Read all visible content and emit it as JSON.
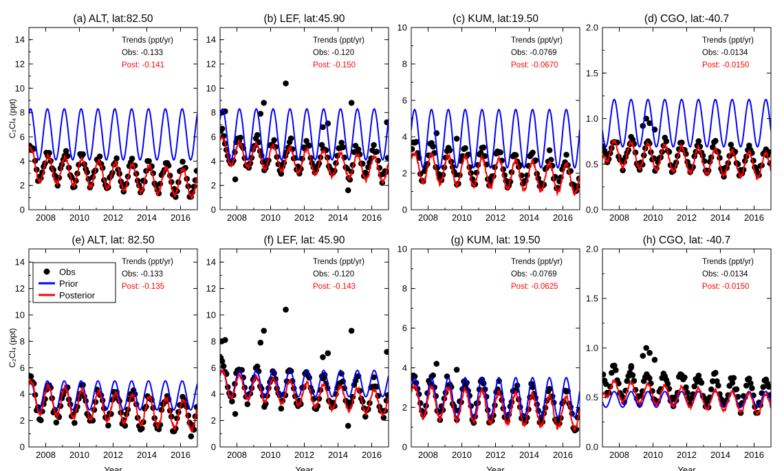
{
  "figure": {
    "y_label": "C₂Cl₄ (ppt)",
    "x_label": "Year",
    "trend_heading": "Trends (ppt/yr)",
    "obs_prefix": "Obs: ",
    "post_prefix": "Post: "
  },
  "legend": [
    {
      "name": "Obs",
      "kind": "dot",
      "color": "#000000"
    },
    {
      "name": "Prior",
      "kind": "line",
      "color": "#0000ff"
    },
    {
      "name": "Posterior",
      "kind": "line",
      "color": "#ff0000"
    }
  ],
  "chart_data": [
    {
      "type": "line",
      "title": "(a) ALT, lat:82.50",
      "xlim": [
        2007,
        2017
      ],
      "ylim": [
        0,
        15
      ],
      "xticks": [
        "2008",
        "2010",
        "2012",
        "2014",
        "2016"
      ],
      "yticks": [
        "0",
        "2",
        "4",
        "6",
        "8",
        "10",
        "12",
        "14"
      ],
      "trend_obs": "-0.133",
      "trend_post": "-0.141",
      "prior": {
        "mean": 6.2,
        "amp": 2.1,
        "peak": 0.1
      },
      "post": {
        "mean": 2.8,
        "amp": 1.1,
        "peak": 0.15,
        "trend": -0.14,
        "start": 5.2
      },
      "obs": {
        "mean": 3.0,
        "amp": 1.2,
        "peak": 0.15,
        "trend": -0.13,
        "start": 5.2
      },
      "outliers": []
    },
    {
      "type": "line",
      "title": "(b) LEF, lat:45.90",
      "xlim": [
        2007,
        2017
      ],
      "ylim": [
        0,
        15
      ],
      "xticks": [
        "2008",
        "2010",
        "2012",
        "2014",
        "2016"
      ],
      "yticks": [
        "0",
        "2",
        "4",
        "6",
        "8",
        "10",
        "12",
        "14"
      ],
      "trend_obs": "-0.120",
      "trend_post": "-0.150",
      "prior": {
        "mean": 6.2,
        "amp": 2.1,
        "peak": 0.15
      },
      "post": {
        "mean": 4.0,
        "amp": 1.0,
        "peak": 0.15,
        "trend": -0.15,
        "start": 6.0
      },
      "obs": {
        "mean": 4.3,
        "amp": 1.2,
        "peak": 0.15,
        "trend": -0.12,
        "start": 6.5
      },
      "outliers": [
        [
          2007.1,
          8.0
        ],
        [
          2007.3,
          8.1
        ],
        [
          2009.6,
          8.8
        ],
        [
          2009.4,
          7.9
        ],
        [
          2010.9,
          10.4
        ],
        [
          2013.1,
          6.8
        ],
        [
          2013.4,
          7.1
        ],
        [
          2014.8,
          8.8
        ],
        [
          2016.9,
          7.2
        ],
        [
          2007.9,
          2.5
        ],
        [
          2014.6,
          1.6
        ]
      ]
    },
    {
      "type": "line",
      "title": "(c) KUM, lat:19.50",
      "xlim": [
        2007,
        2017
      ],
      "ylim": [
        0,
        10
      ],
      "xticks": [
        "2008",
        "2010",
        "2012",
        "2014",
        "2016"
      ],
      "yticks": [
        "0",
        "2",
        "4",
        "6",
        "8",
        "10"
      ],
      "trend_obs": "-0.0769",
      "trend_post": "-0.0670",
      "prior": {
        "mean": 3.9,
        "amp": 1.6,
        "peak": 0.2
      },
      "post": {
        "mean": 2.0,
        "amp": 0.8,
        "peak": 0.2,
        "trend": -0.067,
        "start": 3.0
      },
      "obs": {
        "mean": 2.3,
        "amp": 0.9,
        "peak": 0.2,
        "trend": -0.077,
        "start": 3.5
      },
      "outliers": [
        [
          2008.5,
          4.2
        ],
        [
          2009.7,
          3.9
        ],
        [
          2011.2,
          3.4
        ]
      ]
    },
    {
      "type": "line",
      "title": "(d) CGO, lat:-40.7",
      "xlim": [
        2007,
        2017
      ],
      "ylim": [
        0,
        2
      ],
      "xticks": [
        "2008",
        "2010",
        "2012",
        "2014",
        "2016"
      ],
      "yticks": [
        "0.0",
        "0.5",
        "1.0",
        "1.5",
        "2.0"
      ],
      "trend_obs": "-0.0134",
      "trend_post": "-0.0150",
      "prior": {
        "mean": 0.95,
        "amp": 0.26,
        "peak": 0.7
      },
      "post": {
        "mean": 0.55,
        "amp": 0.14,
        "peak": 0.7,
        "trend": -0.015,
        "start": 0.6
      },
      "obs": {
        "mean": 0.58,
        "amp": 0.15,
        "peak": 0.7,
        "trend": -0.013,
        "start": 0.7
      },
      "outliers": [
        [
          2009.6,
          1.0
        ],
        [
          2009.8,
          0.95
        ],
        [
          2009.4,
          0.92
        ],
        [
          2010.1,
          0.88
        ],
        [
          2008.7,
          0.8
        ]
      ]
    },
    {
      "type": "line",
      "title": "(e) ALT, lat: 82.50",
      "xlim": [
        2007,
        2017
      ],
      "ylim": [
        0,
        15
      ],
      "xticks": [
        "2008",
        "2010",
        "2012",
        "2014",
        "2016"
      ],
      "yticks": [
        "0",
        "2",
        "4",
        "6",
        "8",
        "10",
        "12",
        "14"
      ],
      "trend_obs": "-0.133",
      "trend_post": "-0.135",
      "legend": true,
      "prior": {
        "mean": 3.9,
        "amp": 1.1,
        "peak": 0.1
      },
      "post": {
        "mean": 3.0,
        "amp": 1.1,
        "peak": 0.15,
        "trend": -0.135,
        "start": 5.0
      },
      "obs": {
        "mean": 3.0,
        "amp": 1.2,
        "peak": 0.15,
        "trend": -0.13,
        "start": 5.2
      },
      "outliers": []
    },
    {
      "type": "line",
      "title": "(f) LEF, lat: 45.90",
      "xlim": [
        2007,
        2017
      ],
      "ylim": [
        0,
        15
      ],
      "xticks": [
        "2008",
        "2010",
        "2012",
        "2014",
        "2016"
      ],
      "yticks": [
        "0",
        "2",
        "4",
        "6",
        "8",
        "10",
        "12",
        "14"
      ],
      "trend_obs": "-0.120",
      "trend_post": "-0.143",
      "prior": {
        "mean": 4.8,
        "amp": 1.0,
        "peak": 0.15
      },
      "post": {
        "mean": 4.0,
        "amp": 0.9,
        "peak": 0.15,
        "trend": -0.143,
        "start": 5.8
      },
      "obs": {
        "mean": 4.3,
        "amp": 1.2,
        "peak": 0.15,
        "trend": -0.12,
        "start": 6.5
      },
      "outliers": [
        [
          2007.1,
          8.0
        ],
        [
          2007.3,
          8.1
        ],
        [
          2009.6,
          8.8
        ],
        [
          2009.4,
          7.9
        ],
        [
          2010.9,
          10.4
        ],
        [
          2013.1,
          6.8
        ],
        [
          2013.4,
          7.1
        ],
        [
          2014.8,
          8.8
        ],
        [
          2016.9,
          7.2
        ],
        [
          2007.9,
          2.5
        ],
        [
          2014.6,
          1.6
        ]
      ]
    },
    {
      "type": "line",
      "title": "(g) KUM, lat: 19.50",
      "xlim": [
        2007,
        2017
      ],
      "ylim": [
        0,
        10
      ],
      "xticks": [
        "2008",
        "2010",
        "2012",
        "2014",
        "2016"
      ],
      "yticks": [
        "0",
        "2",
        "4",
        "6",
        "8",
        "10"
      ],
      "trend_obs": "-0.0769",
      "trend_post": "-0.0625",
      "prior": {
        "mean": 2.5,
        "amp": 1.0,
        "peak": 0.2
      },
      "post": {
        "mean": 2.0,
        "amp": 0.8,
        "peak": 0.2,
        "trend": -0.0625,
        "start": 3.0
      },
      "obs": {
        "mean": 2.3,
        "amp": 0.9,
        "peak": 0.2,
        "trend": -0.077,
        "start": 3.5
      },
      "outliers": [
        [
          2008.5,
          4.2
        ],
        [
          2009.7,
          3.9
        ],
        [
          2011.2,
          3.4
        ]
      ]
    },
    {
      "type": "line",
      "title": "(h) CGO, lat: -40.7",
      "xlim": [
        2007,
        2017
      ],
      "ylim": [
        0,
        2
      ],
      "xticks": [
        "2008",
        "2010",
        "2012",
        "2014",
        "2016"
      ],
      "yticks": [
        "0.0",
        "0.5",
        "1.0",
        "1.5",
        "2.0"
      ],
      "trend_obs": "-0.0134",
      "trend_post": "-0.0150",
      "prior": {
        "mean": 0.48,
        "amp": 0.08,
        "peak": 0.7
      },
      "post": {
        "mean": 0.5,
        "amp": 0.1,
        "peak": 0.7,
        "trend": -0.015,
        "start": 0.55
      },
      "obs": {
        "mean": 0.58,
        "amp": 0.15,
        "peak": 0.7,
        "trend": -0.013,
        "start": 0.7
      },
      "outliers": [
        [
          2009.6,
          1.0
        ],
        [
          2009.8,
          0.95
        ],
        [
          2009.4,
          0.92
        ],
        [
          2010.1,
          0.88
        ],
        [
          2008.7,
          0.8
        ]
      ]
    }
  ]
}
